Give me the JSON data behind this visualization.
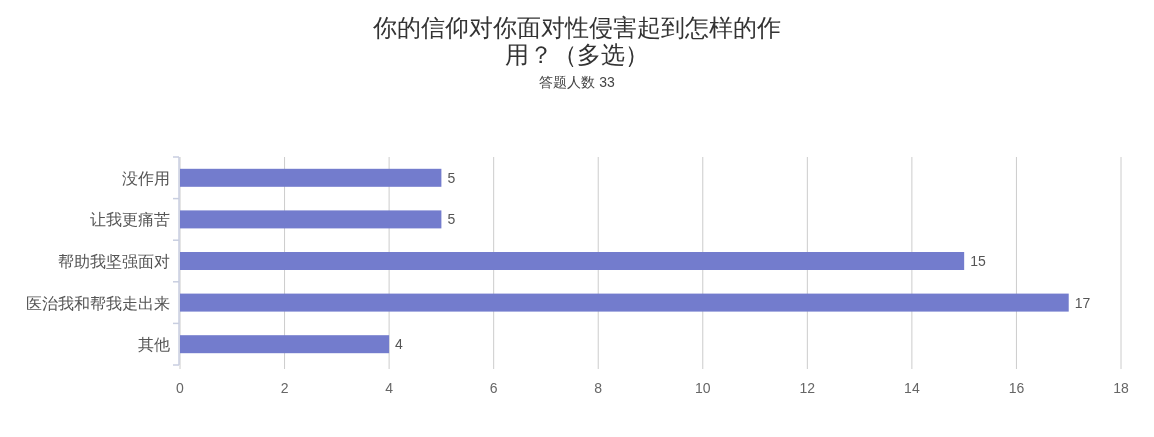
{
  "chart_data": {
    "type": "bar",
    "orientation": "horizontal",
    "title": "你的信仰对你面对性侵害起到怎样的作用？（多选）",
    "subtitle": "答题人数 33",
    "categories": [
      "没作用",
      "让我更痛苦",
      "帮助我坚强面对",
      "医治我和帮我走出来",
      "其他"
    ],
    "values": [
      5,
      5,
      15,
      17,
      4
    ],
    "color": "#737ccd",
    "xlim": [
      0,
      18
    ],
    "xticks": [
      0,
      2,
      4,
      6,
      8,
      10,
      12,
      14,
      16,
      18
    ],
    "grid": "x",
    "data_labels": true
  }
}
